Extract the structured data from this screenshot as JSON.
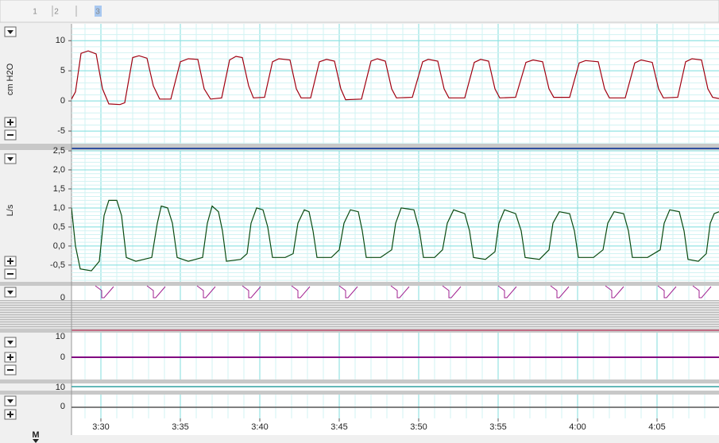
{
  "toolbar": {
    "tabs": [
      "1",
      "2",
      "3"
    ]
  },
  "bottom_label": "M",
  "time_axis": {
    "xlim": [
      208.15,
      248.9
    ],
    "xticks": [
      {
        "value": 210,
        "label": "3:30"
      },
      {
        "value": 215,
        "label": "3:35"
      },
      {
        "value": 220,
        "label": "3:40"
      },
      {
        "value": 225,
        "label": "3:45"
      },
      {
        "value": 230,
        "label": "3:50"
      },
      {
        "value": 235,
        "label": "3:55"
      },
      {
        "value": 240,
        "label": "4:00"
      },
      {
        "value": 245,
        "label": "4:05"
      }
    ]
  },
  "chart_data": [
    {
      "type": "line",
      "y_label": "cm H2O",
      "color": "#a00010",
      "grid": true,
      "xlim": [
        208.15,
        248.9
      ],
      "ylim": [
        -7.1,
        12.8
      ],
      "yticks": [
        10,
        5,
        0,
        -5
      ],
      "x": [
        208.15,
        208.4,
        208.75,
        209.2,
        209.7,
        210.1,
        210.5,
        211.2,
        211.5,
        212.0,
        212.4,
        212.9,
        213.3,
        213.7,
        214.4,
        215.0,
        215.5,
        216.1,
        216.5,
        216.9,
        217.6,
        218.1,
        218.5,
        218.9,
        219.3,
        219.6,
        220.3,
        220.8,
        221.2,
        221.9,
        222.3,
        222.6,
        223.2,
        223.75,
        224.2,
        224.7,
        225.1,
        225.4,
        226.4,
        227.0,
        227.4,
        227.9,
        228.3,
        228.6,
        229.6,
        230.25,
        230.6,
        231.2,
        231.6,
        231.9,
        232.9,
        233.5,
        233.9,
        234.4,
        234.8,
        235.1,
        236.1,
        236.75,
        237.2,
        237.8,
        238.2,
        238.5,
        239.5,
        240.1,
        240.5,
        241.3,
        241.7,
        242.0,
        243.0,
        243.6,
        244.0,
        244.7,
        245.1,
        245.4,
        246.3,
        246.8,
        247.2,
        247.8,
        248.2,
        248.5,
        248.9
      ],
      "values": [
        0.3,
        1.5,
        7.9,
        8.3,
        7.8,
        2.0,
        -0.5,
        -0.6,
        -0.3,
        7.2,
        7.5,
        7.1,
        2.5,
        0.3,
        0.3,
        6.5,
        7.0,
        6.9,
        2.0,
        0.3,
        0.5,
        6.8,
        7.4,
        7.2,
        2.5,
        0.5,
        0.6,
        6.5,
        7.0,
        6.8,
        2.0,
        0.5,
        0.5,
        6.5,
        6.9,
        6.6,
        2.0,
        0.2,
        0.3,
        6.6,
        7.0,
        6.6,
        2.0,
        0.5,
        0.6,
        6.5,
        6.9,
        6.6,
        2.0,
        0.5,
        0.5,
        6.4,
        6.9,
        6.6,
        2.0,
        0.5,
        0.6,
        6.4,
        6.8,
        6.5,
        2.0,
        0.6,
        0.6,
        6.3,
        6.7,
        6.5,
        2.0,
        0.5,
        0.5,
        6.3,
        6.8,
        6.4,
        2.0,
        0.5,
        0.6,
        6.5,
        7.0,
        6.8,
        2.0,
        0.6,
        0.4
      ]
    },
    {
      "type": "line",
      "y_label": "L/s",
      "color": "#0a4a10",
      "grid": true,
      "xlim": [
        208.15,
        248.9
      ],
      "ylim": [
        -0.94,
        2.5
      ],
      "yticks": [
        {
          "value": 2.5,
          "label": "2,5"
        },
        {
          "value": 2.0,
          "label": "2,0"
        },
        {
          "value": 1.5,
          "label": "1,5"
        },
        {
          "value": 1.0,
          "label": "1,0"
        },
        {
          "value": 0.5,
          "label": "0,5"
        },
        {
          "value": 0,
          "label": "0,0"
        },
        {
          "value": -0.5,
          "label": "-0,5"
        }
      ],
      "x": [
        208.15,
        208.4,
        208.7,
        209.4,
        209.9,
        210.2,
        210.5,
        211.0,
        211.3,
        211.6,
        212.2,
        213.2,
        213.55,
        213.8,
        214.2,
        214.5,
        214.8,
        215.5,
        216.4,
        216.7,
        217.0,
        217.4,
        217.65,
        217.9,
        218.8,
        219.2,
        219.45,
        219.8,
        220.2,
        220.5,
        220.8,
        221.6,
        222.1,
        222.4,
        222.8,
        223.1,
        223.35,
        223.6,
        224.5,
        225.0,
        225.3,
        225.7,
        226.2,
        226.45,
        226.7,
        227.6,
        228.3,
        228.55,
        228.9,
        229.7,
        230.05,
        230.3,
        231.0,
        231.5,
        231.8,
        232.2,
        232.9,
        233.2,
        233.45,
        234.2,
        234.8,
        235.05,
        235.4,
        236.1,
        236.45,
        236.7,
        237.6,
        238.2,
        238.45,
        238.85,
        239.5,
        239.8,
        240.05,
        241.0,
        241.6,
        241.9,
        242.3,
        242.9,
        243.2,
        243.45,
        244.4,
        245.2,
        245.45,
        245.8,
        246.4,
        246.7,
        246.95,
        247.6,
        248.1,
        248.35,
        248.6,
        248.9
      ],
      "values": [
        1.0,
        0.0,
        -0.6,
        -0.65,
        -0.4,
        0.8,
        1.2,
        1.2,
        0.8,
        -0.3,
        -0.4,
        -0.3,
        0.6,
        1.05,
        1.0,
        0.6,
        -0.3,
        -0.4,
        -0.3,
        0.6,
        1.05,
        0.9,
        0.4,
        -0.4,
        -0.35,
        -0.2,
        0.6,
        1.0,
        0.95,
        0.5,
        -0.3,
        -0.3,
        -0.2,
        0.6,
        0.95,
        0.9,
        0.4,
        -0.3,
        -0.3,
        -0.1,
        0.6,
        0.95,
        0.9,
        0.4,
        -0.3,
        -0.3,
        -0.1,
        0.6,
        1.0,
        0.95,
        0.4,
        -0.3,
        -0.3,
        -0.1,
        0.6,
        0.95,
        0.85,
        0.4,
        -0.3,
        -0.35,
        -0.15,
        0.6,
        0.95,
        0.85,
        0.4,
        -0.3,
        -0.35,
        -0.1,
        0.6,
        0.9,
        0.85,
        0.4,
        -0.3,
        -0.3,
        -0.1,
        0.6,
        0.9,
        0.85,
        0.4,
        -0.3,
        -0.3,
        -0.1,
        0.6,
        0.95,
        0.9,
        0.4,
        -0.35,
        -0.4,
        -0.2,
        0.6,
        0.85,
        0.9
      ]
    }
  ],
  "other_channels": [
    {
      "ticks": [
        0
      ]
    },
    {
      "ticks": [
        10,
        0
      ]
    },
    {
      "ticks": [
        10
      ]
    },
    {
      "ticks": [
        0
      ]
    }
  ]
}
